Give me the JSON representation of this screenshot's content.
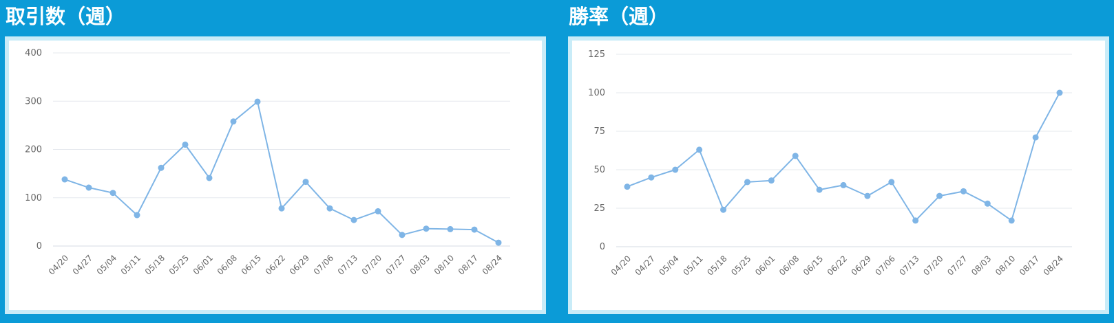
{
  "colors": {
    "background": "#0b9bd7",
    "panel_border": "#c9ecf8",
    "line": "#7fb5e6",
    "grid": "#e6e9ee"
  },
  "charts": [
    {
      "title": "取引数（週）"
    },
    {
      "title": "勝率（週）"
    }
  ],
  "chart_data": [
    {
      "type": "line",
      "title": "取引数（週）",
      "xlabel": "",
      "ylabel": "",
      "grid": true,
      "x": [
        "04/20",
        "04/27",
        "05/04",
        "05/11",
        "05/18",
        "05/25",
        "06/01",
        "06/08",
        "06/15",
        "06/22",
        "06/29",
        "07/06",
        "07/13",
        "07/20",
        "07/27",
        "08/03",
        "08/10",
        "08/17",
        "08/24"
      ],
      "y_ticks": [
        0,
        100,
        200,
        300,
        400
      ],
      "ylim": [
        0,
        400
      ],
      "series": [
        {
          "values": [
            138,
            121,
            110,
            64,
            162,
            210,
            141,
            258,
            299,
            78,
            133,
            78,
            54,
            72,
            23,
            36,
            35,
            34,
            7
          ]
        }
      ]
    },
    {
      "type": "line",
      "title": "勝率（週）",
      "xlabel": "",
      "ylabel": "",
      "grid": true,
      "x": [
        "04/20",
        "04/27",
        "05/04",
        "05/11",
        "05/18",
        "05/25",
        "06/01",
        "06/08",
        "06/15",
        "06/22",
        "06/29",
        "07/06",
        "07/13",
        "07/20",
        "07/27",
        "08/03",
        "08/10",
        "08/17",
        "08/24"
      ],
      "y_ticks": [
        0,
        25,
        50,
        75,
        100,
        125
      ],
      "ylim": [
        0,
        125
      ],
      "series": [
        {
          "values": [
            39,
            45,
            50,
            63,
            24,
            42,
            43,
            59,
            37,
            40,
            33,
            42,
            17,
            33,
            36,
            28,
            17,
            71,
            100
          ]
        }
      ]
    }
  ]
}
